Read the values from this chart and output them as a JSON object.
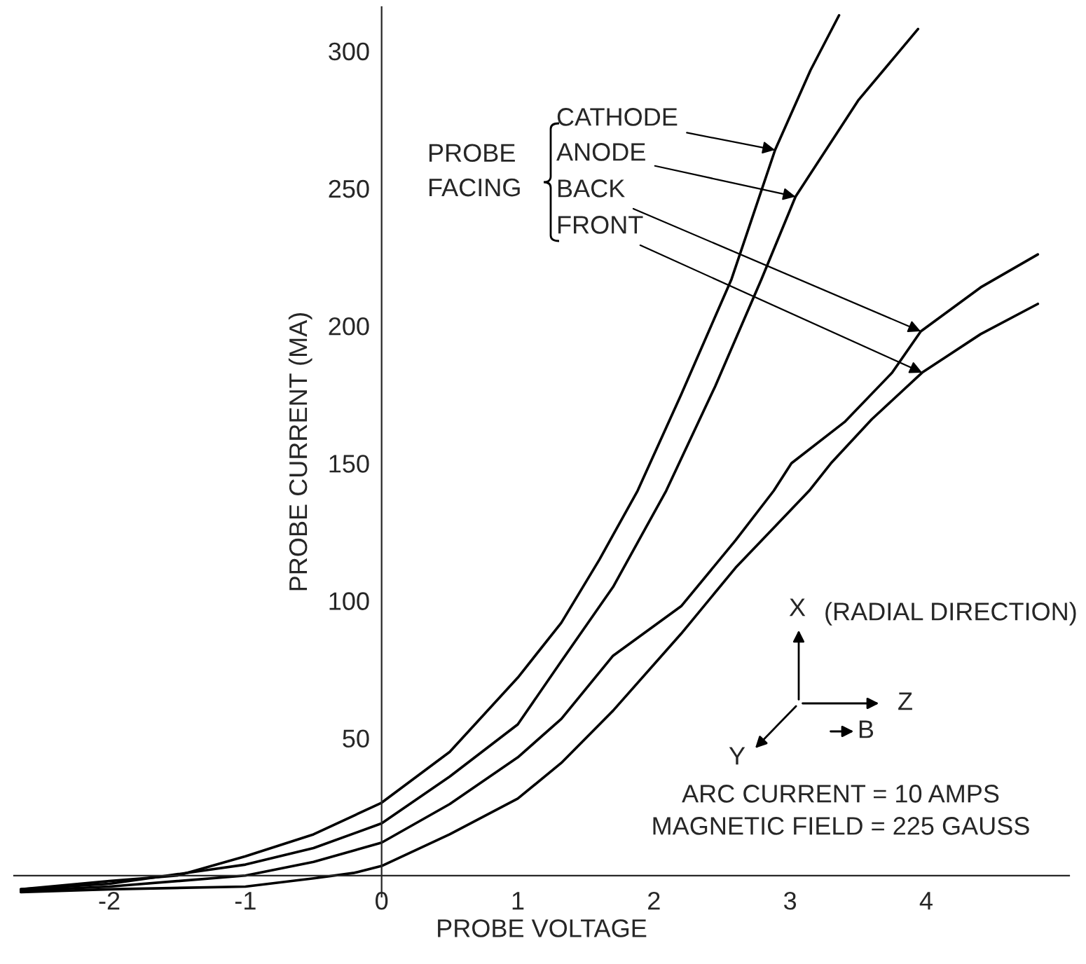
{
  "chart_data": {
    "type": "line",
    "xlabel": "PROBE VOLTAGE",
    "ylabel": "PROBE CURRENT (MA)",
    "xlim": [
      -2.7,
      5.05
    ],
    "ylim": [
      -7.7,
      316
    ],
    "xticks": [
      {
        "value": -2,
        "label": "-2"
      },
      {
        "value": -1,
        "label": "-1"
      },
      0,
      1,
      2,
      3,
      4
    ],
    "yticks": [
      50,
      100,
      150,
      200,
      250,
      300
    ],
    "grid": false,
    "marker": "none",
    "line_style": "solid",
    "series": [
      {
        "color": "#000000",
        "x": [
          -2.65,
          -2,
          -1.5,
          -1,
          -0.5,
          0,
          0.5,
          1,
          1.32,
          1.6,
          1.88,
          2.2,
          2.57,
          2.89,
          3.15,
          3.36
        ],
        "values": [
          -5,
          -2,
          0,
          7,
          15,
          26.5,
          45,
          72,
          92,
          115,
          140,
          175,
          217,
          264,
          293,
          313
        ]
      },
      {
        "color": "#000000",
        "x": [
          -2.65,
          -2,
          -1,
          -0.5,
          0,
          0.5,
          1,
          1.32,
          1.7,
          2.09,
          2.45,
          2.79,
          3.04,
          3.5,
          3.94
        ],
        "values": [
          -5,
          -3,
          4,
          10,
          19,
          36,
          55,
          78,
          105,
          140,
          178,
          217,
          247,
          282,
          308
        ]
      },
      {
        "color": "#000000",
        "x": [
          -2.65,
          -2,
          -1,
          -0.5,
          0,
          0.5,
          1,
          1.32,
          1.7,
          2.2,
          2.6,
          2.88,
          3.01,
          3.4,
          3.75,
          3.96,
          4.4,
          4.82
        ],
        "values": [
          -5.5,
          -4,
          0,
          5,
          12,
          26,
          43,
          57,
          80,
          98,
          122,
          140,
          150,
          165,
          183,
          198,
          214,
          226
        ]
      },
      {
        "color": "#000000",
        "x": [
          -2.65,
          -2,
          -1,
          -0.5,
          -0.2,
          0,
          0.5,
          1,
          1.32,
          1.7,
          2.2,
          2.6,
          3.14,
          3.3,
          3.6,
          3.97,
          4.4,
          4.82
        ],
        "values": [
          -6,
          -5,
          -4,
          -1,
          1,
          3.5,
          15,
          28,
          41,
          60,
          88,
          112,
          140,
          150,
          166,
          183,
          197,
          208
        ]
      }
    ],
    "annotations": [
      "PROBE\nFACING",
      {
        "text": "CATHODE",
        "x": 2.89,
        "y": 264
      },
      {
        "text": "ANODE",
        "x": 3.04,
        "y": 247
      },
      {
        "text": "BACK",
        "x": 3.96,
        "y": 198
      },
      {
        "text": "FRONT",
        "x": 3.97,
        "y": 183
      },
      "X",
      "(RADIAL DIRECTION)",
      "Z",
      "Y",
      "B",
      "ARC CURRENT = 10 AMPS",
      "MAGNETIC FIELD = 225 GAUSS"
    ]
  }
}
